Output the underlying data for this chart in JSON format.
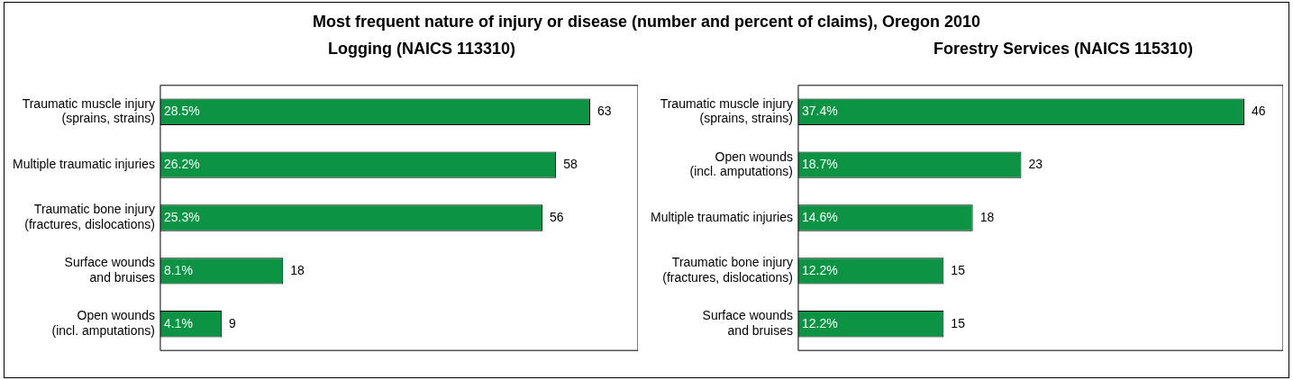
{
  "chart_data": [
    {
      "type": "bar",
      "orientation": "horizontal",
      "title": "Most frequent nature of injury or disease (number and percent of claims), Oregon 2010",
      "subtitle": "Logging (NAICS 113310)",
      "categories": [
        "Traumatic muscle injury\n(sprains, strains)",
        "Multiple traumatic injuries",
        "Traumatic bone injury\n(fractures, dislocations)",
        "Surface wounds\nand bruises",
        "Open wounds\n(incl. amputations)"
      ],
      "values": [
        63,
        58,
        56,
        18,
        9
      ],
      "color": "#0c9444",
      "xlim": [
        0,
        70
      ],
      "tick_labels": "y",
      "legend": false,
      "data_labels": true,
      "annotations": [
        "28.5%",
        "26.2%",
        "25.3%",
        "8.1%",
        "4.1%"
      ]
    },
    {
      "type": "bar",
      "orientation": "horizontal",
      "subtitle": "Forestry Services (NAICS 115310)",
      "categories": [
        "Traumatic muscle injury\n(sprains, strains)",
        "Open wounds\n(incl. amputations)",
        "Multiple traumatic injuries",
        "Traumatic bone injury\n(fractures, dislocations)",
        "Surface wounds\nand bruises"
      ],
      "values": [
        46,
        23,
        18,
        15,
        15
      ],
      "color": "#0c9444",
      "xlim": [
        0,
        50
      ],
      "tick_labels": "y",
      "legend": false,
      "data_labels": true,
      "annotations": [
        "37.4%",
        "18.7%",
        "14.6%",
        "12.2%",
        "12.2%"
      ]
    }
  ]
}
